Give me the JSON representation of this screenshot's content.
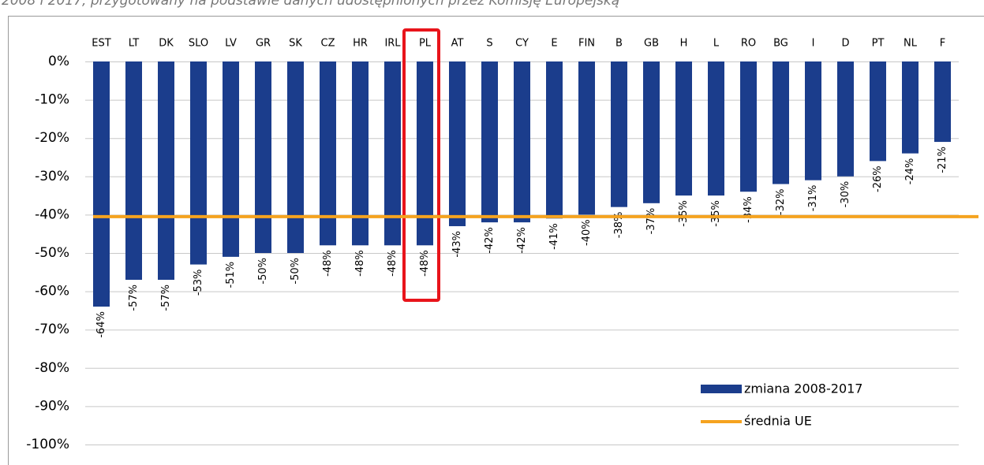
{
  "chart_data": {
    "type": "bar",
    "subtitle": "2008 i 2017, przygotowany na podstawie danych udostępnionych przez Komisję Europejską",
    "categories": [
      "EST",
      "LT",
      "DK",
      "SLO",
      "LV",
      "GR",
      "SK",
      "CZ",
      "HR",
      "IRL",
      "PL",
      "AT",
      "S",
      "CY",
      "E",
      "FIN",
      "B",
      "GB",
      "H",
      "L",
      "RO",
      "BG",
      "I",
      "D",
      "PT",
      "NL",
      "F"
    ],
    "series": [
      {
        "name": "zmiana 2008-2017",
        "color": "#1b3d8c",
        "values": [
          -64,
          -57,
          -57,
          -53,
          -51,
          -50,
          -50,
          -48,
          -48,
          -48,
          -48,
          -43,
          -42,
          -42,
          -41,
          -40,
          -38,
          -37,
          -35,
          -35,
          -34,
          -32,
          -31,
          -30,
          -26,
          -24,
          -21
        ],
        "value_labels": [
          "-64%",
          "-57%",
          "-57%",
          "-53%",
          "-51%",
          "-50%",
          "-50%",
          "-48%",
          "-48%",
          "-48%",
          "-48%",
          "-43%",
          "-42%",
          "-42%",
          "-41%",
          "-40%",
          "-38%",
          "-37%",
          "-35%",
          "-35%",
          "-34%",
          "-32%",
          "-31%",
          "-30%",
          "-26%",
          "-24%",
          "-21%"
        ]
      }
    ],
    "reference_line": {
      "name": "średnia UE",
      "color": "#f5a31f",
      "value": -40.5
    },
    "ylim": [
      -100,
      0
    ],
    "yticks": [
      {
        "value": 0,
        "label": "0%"
      },
      {
        "value": -10,
        "label": "-10%"
      },
      {
        "value": -20,
        "label": "-20%"
      },
      {
        "value": -30,
        "label": "-30%"
      },
      {
        "value": -40,
        "label": "-40%"
      },
      {
        "value": -50,
        "label": "-50%"
      },
      {
        "value": -60,
        "label": "-60%"
      },
      {
        "value": -70,
        "label": "-70%"
      },
      {
        "value": -80,
        "label": "-80%"
      },
      {
        "value": -90,
        "label": "-90%"
      },
      {
        "value": -100,
        "label": "-100%"
      }
    ],
    "grid": true
  }
}
